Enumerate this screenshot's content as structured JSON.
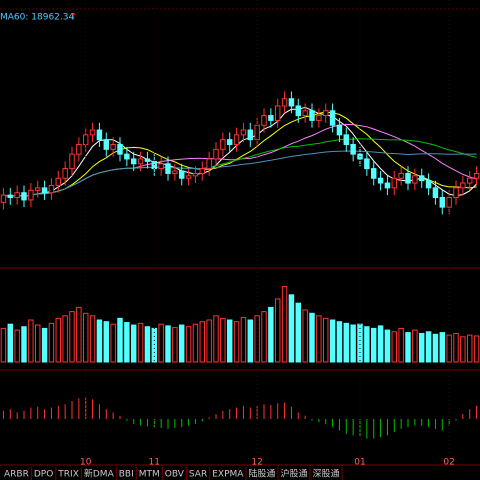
{
  "chart_data": {
    "type": "candlestick",
    "ma60_label": "MA60: 18962.34",
    "ma60_arrow": "↑",
    "ylim": [
      16500,
      21500
    ],
    "open": [
      17800,
      17950,
      17900,
      18000,
      17850,
      18050,
      18100,
      18000,
      18150,
      18300,
      18500,
      18800,
      19000,
      19200,
      19300,
      19100,
      18900,
      19000,
      18800,
      18700,
      18600,
      18700,
      18650,
      18500,
      18600,
      18400,
      18450,
      18300,
      18350,
      18400,
      18500,
      18700,
      18900,
      19100,
      19000,
      19200,
      19300,
      19100,
      19400,
      19600,
      19500,
      19800,
      19950,
      19800,
      19600,
      19700,
      19500,
      19600,
      19700,
      19400,
      19200,
      19000,
      18800,
      18700,
      18500,
      18300,
      18200,
      18100,
      18300,
      18400,
      18200,
      18350,
      18250,
      18100,
      17900,
      17700,
      17900,
      18100,
      18200,
      18300
    ],
    "high": [
      18100,
      18100,
      18150,
      18150,
      18200,
      18250,
      18250,
      18300,
      18450,
      18650,
      18950,
      19150,
      19350,
      19450,
      19450,
      19250,
      19150,
      19150,
      18950,
      18850,
      18850,
      18850,
      18800,
      18750,
      18750,
      18600,
      18600,
      18500,
      18550,
      18650,
      18850,
      19050,
      19250,
      19250,
      19350,
      19450,
      19450,
      19550,
      19750,
      19750,
      19950,
      20100,
      20100,
      19950,
      19850,
      19850,
      19750,
      19850,
      19850,
      19550,
      19350,
      19150,
      18950,
      18850,
      18650,
      18450,
      18350,
      18450,
      18550,
      18550,
      18500,
      18500,
      18400,
      18250,
      18050,
      18050,
      18250,
      18350,
      18450,
      18550
    ],
    "low": [
      17650,
      17750,
      17750,
      17700,
      17700,
      17900,
      17850,
      17850,
      18000,
      18150,
      18350,
      18650,
      18850,
      19050,
      18950,
      18750,
      18750,
      18650,
      18550,
      18450,
      18450,
      18500,
      18350,
      18350,
      18250,
      18250,
      18150,
      18150,
      18200,
      18250,
      18350,
      18550,
      18750,
      18850,
      18850,
      19050,
      18950,
      18950,
      19250,
      19350,
      19350,
      19650,
      19650,
      19450,
      19450,
      19350,
      19350,
      19450,
      19250,
      19050,
      18850,
      18650,
      18550,
      18350,
      18150,
      18050,
      17950,
      17950,
      18150,
      18050,
      18050,
      18100,
      17950,
      17750,
      17550,
      17550,
      17750,
      17950,
      18050,
      18150
    ],
    "close": [
      17950,
      17900,
      18000,
      17850,
      18050,
      18100,
      18000,
      18150,
      18300,
      18500,
      18800,
      19000,
      19200,
      19300,
      19100,
      18900,
      19000,
      18800,
      18700,
      18600,
      18700,
      18650,
      18500,
      18600,
      18400,
      18450,
      18300,
      18350,
      18400,
      18500,
      18700,
      18900,
      19100,
      19000,
      19200,
      19300,
      19100,
      19400,
      19600,
      19500,
      19800,
      19950,
      19800,
      19600,
      19700,
      19500,
      19600,
      19700,
      19400,
      19200,
      19000,
      18800,
      18700,
      18500,
      18300,
      18200,
      18100,
      18300,
      18400,
      18200,
      18350,
      18250,
      18100,
      17900,
      17700,
      17900,
      18100,
      18200,
      18300,
      18400
    ],
    "volume": [
      40,
      45,
      38,
      42,
      50,
      44,
      40,
      46,
      52,
      55,
      60,
      65,
      58,
      55,
      50,
      48,
      45,
      52,
      47,
      44,
      46,
      42,
      40,
      45,
      43,
      41,
      44,
      42,
      45,
      48,
      50,
      55,
      52,
      50,
      48,
      53,
      50,
      55,
      60,
      65,
      75,
      90,
      80,
      70,
      62,
      58,
      55,
      52,
      50,
      48,
      46,
      44,
      45,
      42,
      40,
      43,
      38,
      36,
      40,
      35,
      38,
      34,
      36,
      33,
      35,
      32,
      34,
      30,
      32,
      31
    ],
    "volume_ylim": [
      0,
      100
    ],
    "macd_hist": [
      10,
      12,
      8,
      10,
      14,
      15,
      12,
      14,
      16,
      18,
      22,
      25,
      26,
      24,
      18,
      12,
      8,
      4,
      -2,
      -6,
      -8,
      -9,
      -10,
      -11,
      -12,
      -11,
      -10,
      -8,
      -6,
      -3,
      2,
      6,
      10,
      12,
      14,
      16,
      14,
      16,
      18,
      17,
      19,
      20,
      15,
      8,
      4,
      -2,
      -4,
      -6,
      -10,
      -14,
      -18,
      -20,
      -22,
      -24,
      -24,
      -22,
      -20,
      -16,
      -12,
      -10,
      -8,
      -8,
      -10,
      -12,
      -14,
      -8,
      -2,
      6,
      12,
      16
    ],
    "macd_ylim": [
      -50,
      50
    ],
    "xlabels": [
      {
        "value": 12,
        "label": "10"
      },
      {
        "value": 22,
        "label": "11"
      },
      {
        "value": 37,
        "label": "12"
      },
      {
        "value": 52,
        "label": "01"
      },
      {
        "value": 65,
        "label": "02"
      }
    ],
    "up_color": "#ff3232",
    "down_color": "#54ffff",
    "tabs": [
      "ARBR",
      "DPO",
      "TRIX",
      "新DMA",
      "BBI",
      "MTM",
      "OBV",
      "SAR",
      "EXPMA",
      "陆股通",
      "沪股通",
      "深股通"
    ]
  }
}
